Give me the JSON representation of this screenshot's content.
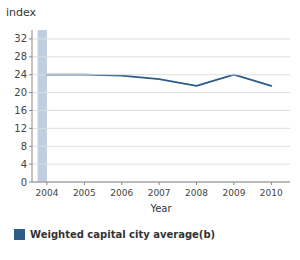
{
  "chart_data": {
    "type": "line",
    "title": "index",
    "xlabel": "Year",
    "x": [
      2004,
      2005,
      2006,
      2007,
      2008,
      2009,
      2010
    ],
    "series": [
      {
        "name": "Weighted capital city average(b)",
        "color": "#2b5c8a",
        "values": [
          24.0,
          24.0,
          23.8,
          23.0,
          21.5,
          24.0,
          21.5
        ]
      }
    ],
    "xlim": [
      2003.6,
      2010.5
    ],
    "xticks": [
      2004,
      2005,
      2006,
      2007,
      2008,
      2009,
      2010
    ],
    "ylim": [
      0,
      34
    ],
    "yticks": [
      0,
      4,
      8,
      12,
      16,
      20,
      24,
      28,
      32
    ],
    "spans": [
      {
        "x": [
          2003.75,
          2004.0
        ],
        "color": "#c0cfe0"
      }
    ],
    "grid": true,
    "legend": "bottom"
  }
}
